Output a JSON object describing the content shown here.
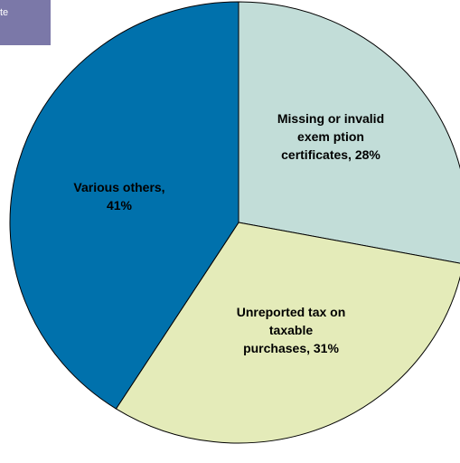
{
  "corner_box": {
    "text": "te",
    "color": "#7b78a8"
  },
  "chart_data": {
    "type": "pie",
    "title": "",
    "start_angle_deg": 0,
    "direction": "clockwise",
    "series": [
      {
        "label_lines": [
          "Missing or invalid",
          "exem ption",
          "certificates, 28%"
        ],
        "value": 28,
        "color": "#c2ddd8"
      },
      {
        "label_lines": [
          "Unreported tax on",
          "taxable",
          "purchases, 31%"
        ],
        "value": 31,
        "color": "#e4ebb9"
      },
      {
        "label_lines": [
          "Various others,",
          "41%"
        ],
        "value": 41,
        "color": "#0071ac"
      }
    ]
  }
}
